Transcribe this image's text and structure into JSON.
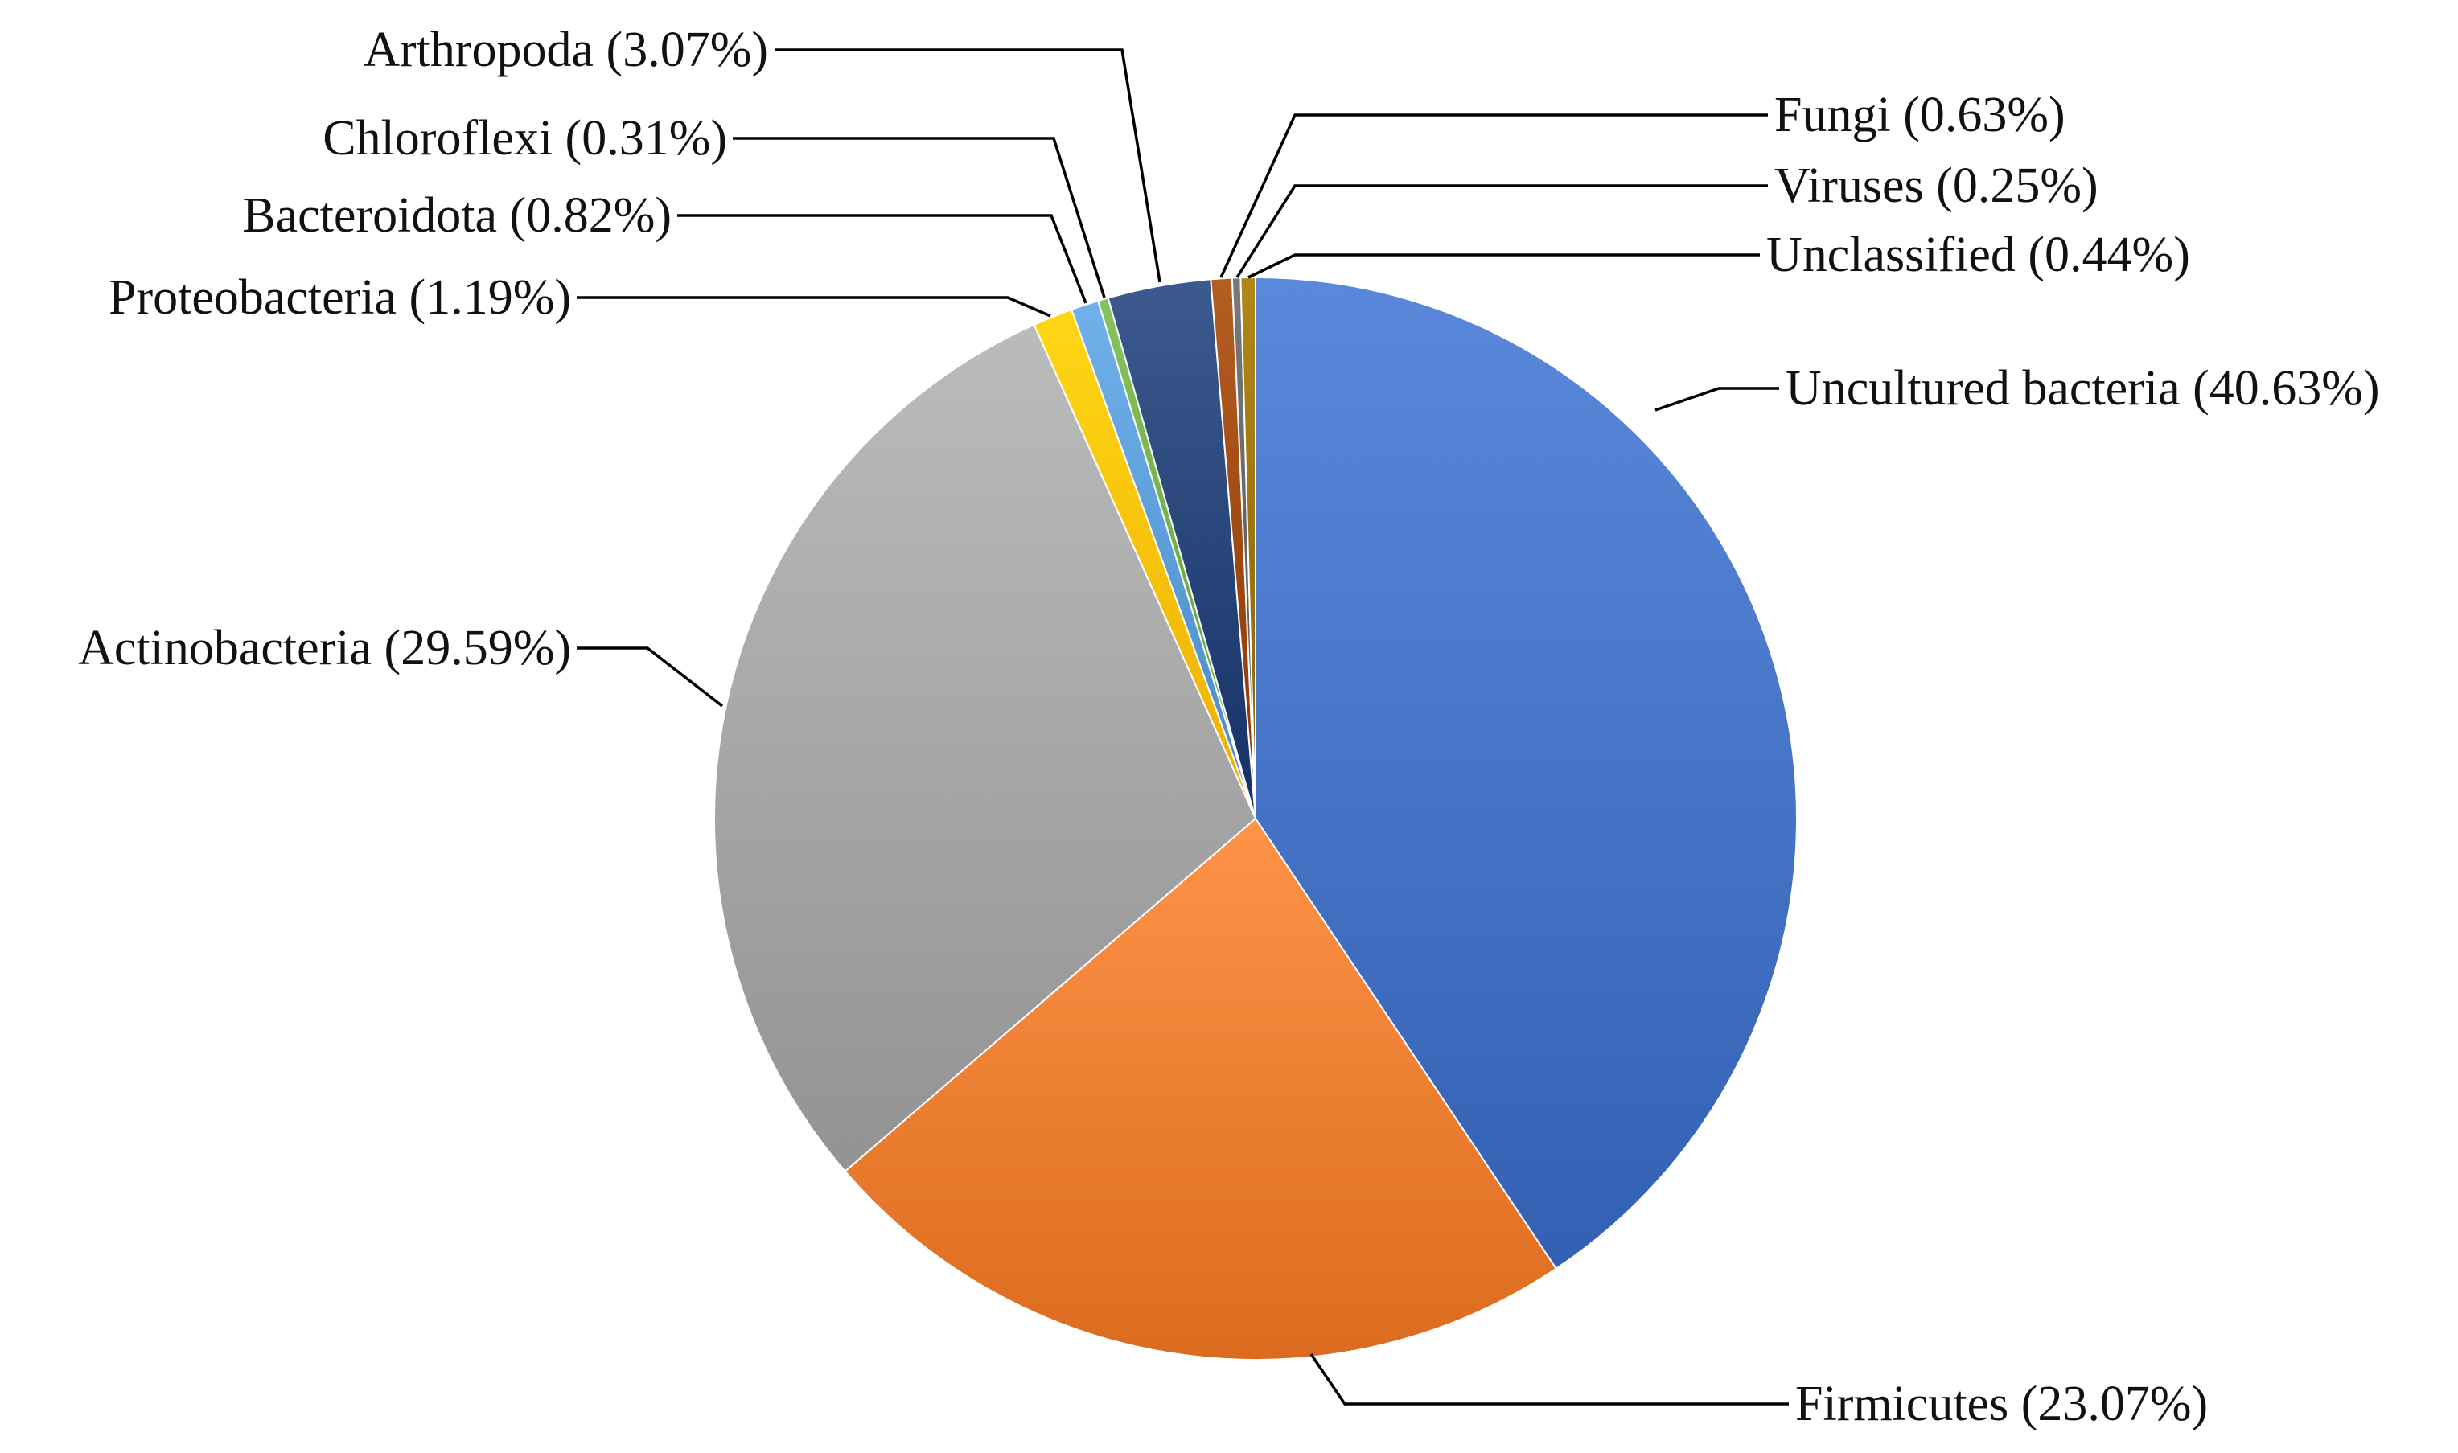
{
  "chart_data": {
    "type": "pie",
    "title": "",
    "slices": [
      {
        "label": "Uncultured bacteria (40.63%)",
        "name": "Uncultured bacteria",
        "value": 40.63,
        "color": "#4472C4"
      },
      {
        "label": "Firmicutes (23.07%)",
        "name": "Firmicutes",
        "value": 23.07,
        "color": "#ED7D31"
      },
      {
        "label": "Actinobacteria (29.59%)",
        "name": "Actinobacteria",
        "value": 29.59,
        "color": "#A5A5A5"
      },
      {
        "label": "Proteobacteria (1.19%)",
        "name": "Proteobacteria",
        "value": 1.19,
        "color": "#FFC000"
      },
      {
        "label": "Bacteroidota (0.82%)",
        "name": "Bacteroidota",
        "value": 0.82,
        "color": "#5B9BD5"
      },
      {
        "label": "Chloroflexi (0.31%)",
        "name": "Chloroflexi",
        "value": 0.31,
        "color": "#70AD47"
      },
      {
        "label": "Arthropoda (3.07%)",
        "name": "Arthropoda",
        "value": 3.07,
        "color": "#264478"
      },
      {
        "label": "Fungi  (0.63%)",
        "name": "Fungi",
        "value": 0.63,
        "color": "#9E480E"
      },
      {
        "label": "Viruses (0.25%)",
        "name": "Viruses",
        "value": 0.25,
        "color": "#636363"
      },
      {
        "label": "Unclassified (0.44%)",
        "name": "Unclassified",
        "value": 0.44,
        "color": "#997300"
      }
    ],
    "start_angle_deg": 0,
    "direction": "clockwise",
    "legend": "none"
  }
}
